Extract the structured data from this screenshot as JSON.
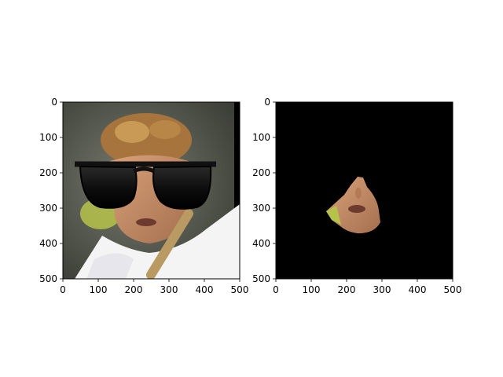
{
  "chart_data": [
    {
      "type": "image",
      "title": "",
      "xlabel": "",
      "ylabel": "",
      "xlim": [
        0,
        500
      ],
      "ylim": [
        500,
        0
      ],
      "xticks": [
        "0",
        "100",
        "200",
        "300",
        "400",
        "500"
      ],
      "yticks": [
        "0",
        "100",
        "200",
        "300",
        "400",
        "500"
      ],
      "grid": false,
      "image_content": "face photo with dark sunglasses overlay"
    },
    {
      "type": "image",
      "title": "",
      "xlabel": "",
      "ylabel": "",
      "xlim": [
        0,
        500
      ],
      "ylim": [
        500,
        0
      ],
      "xticks": [
        "0",
        "100",
        "200",
        "300",
        "400",
        "500"
      ],
      "yticks": [
        "0",
        "100",
        "200",
        "300",
        "400",
        "500"
      ],
      "grid": false,
      "image_content": "masked lower-face crop on black background"
    }
  ],
  "colors": {
    "frame": "#000000",
    "background": "#ffffff",
    "mask_bg": "#000000",
    "lens": "#111111",
    "skin": "#c9906a",
    "hair": "#a6743c",
    "shirt": "#f4f4f4"
  }
}
